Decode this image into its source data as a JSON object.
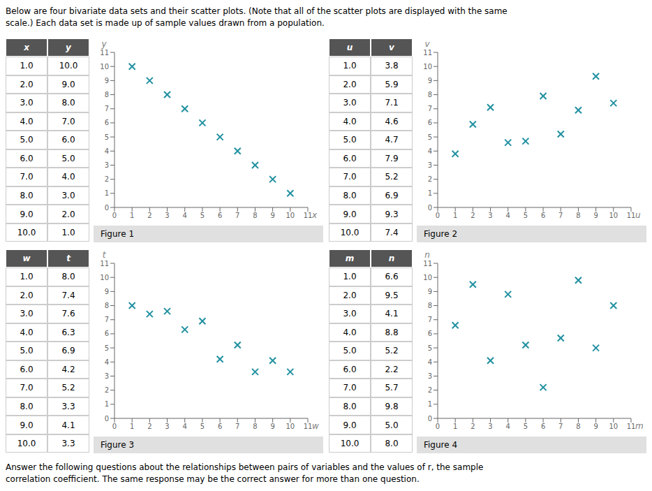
{
  "title": "Below are four bivariate data sets and their scatter plots. (Note that all of the scatter plots are displayed with the same\nscale.) Each data set is made up of sample values drawn from a population.",
  "annotations": [
    "Answer the following questions about the relationships between pairs of variables and the values of r, the sample\ncorrelation coefficient. The same response may be the correct answer for more than one question."
  ],
  "chart_data": [
    {
      "type": "scatter",
      "title": "Figure 1",
      "x_label": "x",
      "y_label": "y",
      "x": [
        1.0,
        2.0,
        3.0,
        4.0,
        5.0,
        6.0,
        7.0,
        8.0,
        9.0,
        10.0
      ],
      "values": [
        10.0,
        9.0,
        8.0,
        7.0,
        6.0,
        5.0,
        4.0,
        3.0,
        2.0,
        1.0
      ],
      "color": "#2090A0",
      "marker": "x",
      "xlim": [
        0,
        11
      ],
      "ylim": [
        0,
        11
      ],
      "xticks": [
        0,
        1,
        2,
        3,
        4,
        5,
        6,
        7,
        8,
        9,
        10,
        11
      ],
      "yticks": [
        0,
        1,
        2,
        3,
        4,
        5,
        6,
        7,
        8,
        9,
        10,
        11
      ],
      "grid": false
    },
    {
      "type": "scatter",
      "title": "Figure 2",
      "x_label": "u",
      "y_label": "v",
      "x": [
        1.0,
        2.0,
        3.0,
        4.0,
        5.0,
        6.0,
        7.0,
        8.0,
        9.0,
        10.0
      ],
      "values": [
        3.8,
        5.9,
        7.1,
        4.6,
        4.7,
        7.9,
        5.2,
        6.9,
        9.3,
        7.4
      ],
      "color": "#2090A0",
      "marker": "x",
      "xlim": [
        0,
        11
      ],
      "ylim": [
        0,
        11
      ],
      "xticks": [
        0,
        1,
        2,
        3,
        4,
        5,
        6,
        7,
        8,
        9,
        10,
        11
      ],
      "yticks": [
        0,
        1,
        2,
        3,
        4,
        5,
        6,
        7,
        8,
        9,
        10,
        11
      ],
      "grid": false
    },
    {
      "type": "scatter",
      "title": "Figure 3",
      "x_label": "w",
      "y_label": "t",
      "x": [
        1.0,
        2.0,
        3.0,
        4.0,
        5.0,
        6.0,
        7.0,
        8.0,
        9.0,
        10.0
      ],
      "values": [
        8.0,
        7.4,
        7.6,
        6.3,
        6.9,
        4.2,
        5.2,
        3.3,
        4.1,
        3.3
      ],
      "color": "#2090A0",
      "marker": "x",
      "xlim": [
        0,
        11
      ],
      "ylim": [
        0,
        11
      ],
      "xticks": [
        0,
        1,
        2,
        3,
        4,
        5,
        6,
        7,
        8,
        9,
        10,
        11
      ],
      "yticks": [
        0,
        1,
        2,
        3,
        4,
        5,
        6,
        7,
        8,
        9,
        10,
        11
      ],
      "grid": false
    },
    {
      "type": "scatter",
      "title": "Figure 4",
      "x_label": "m",
      "y_label": "n",
      "x": [
        1.0,
        2.0,
        3.0,
        4.0,
        5.0,
        6.0,
        7.0,
        8.0,
        9.0,
        10.0
      ],
      "values": [
        6.6,
        9.5,
        4.1,
        8.8,
        5.2,
        2.2,
        5.7,
        9.8,
        5.0,
        8.0
      ],
      "color": "#2090A0",
      "marker": "x",
      "xlim": [
        0,
        11
      ],
      "ylim": [
        0,
        11
      ],
      "xticks": [
        0,
        1,
        2,
        3,
        4,
        5,
        6,
        7,
        8,
        9,
        10,
        11
      ],
      "yticks": [
        0,
        1,
        2,
        3,
        4,
        5,
        6,
        7,
        8,
        9,
        10,
        11
      ],
      "grid": false
    }
  ]
}
